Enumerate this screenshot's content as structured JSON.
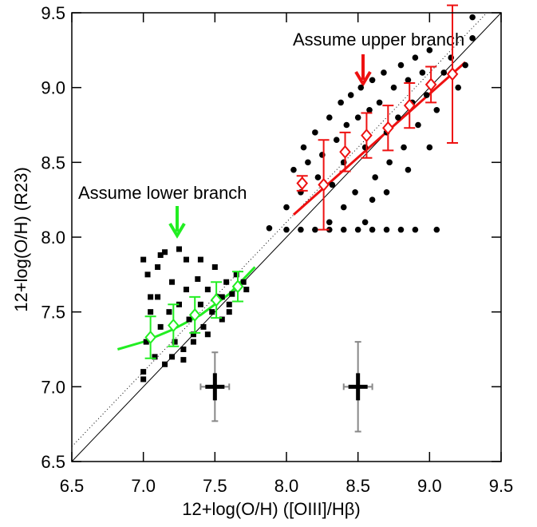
{
  "chart_data": {
    "type": "scatter",
    "xlabel": "12+log(O/H) ([OIII]/Hβ)",
    "ylabel": "12+log(O/H) (R23)",
    "xlim": [
      6.5,
      9.5
    ],
    "ylim": [
      6.5,
      9.5
    ],
    "xticks": [
      {
        "value": 6.5,
        "label": "6.5"
      },
      {
        "value": 7,
        "label": "7.0"
      },
      {
        "value": 7.5,
        "label": "7.5"
      },
      {
        "value": 8,
        "label": "8.0"
      },
      {
        "value": 8.5,
        "label": "8.5"
      },
      {
        "value": 9,
        "label": "9.0"
      },
      {
        "value": 9.5,
        "label": "9.5"
      }
    ],
    "yticks": [
      {
        "value": 6.5,
        "label": "6.5"
      },
      {
        "value": 7,
        "label": "7.0"
      },
      {
        "value": 7.5,
        "label": "7.5"
      },
      {
        "value": 8,
        "label": "8.0"
      },
      {
        "value": 8.5,
        "label": "8.5"
      },
      {
        "value": 9,
        "label": "9.0"
      },
      {
        "value": 9.5,
        "label": "9.5"
      }
    ],
    "annotations": [
      "Assume upper branch",
      "Assume lower branch"
    ],
    "series": [
      {
        "marker": "square",
        "color": "#000000",
        "x": [
          7.0,
          7.02,
          7.05,
          7.03,
          7.08,
          7.1,
          7.12,
          7.0,
          7.15,
          7.18,
          7.2,
          7.22,
          7.1,
          7.25,
          7.28,
          7.3,
          7.15,
          7.32,
          7.35,
          7.38,
          7.4,
          7.25,
          7.42,
          7.45,
          7.48,
          7.5,
          7.35,
          7.52,
          7.55,
          7.58,
          7.6,
          7.45,
          7.62,
          7.65,
          7.7,
          7.72,
          7.2,
          7.3,
          7.05,
          7.4,
          7.55,
          7.12,
          7.28,
          7.6,
          7.0
        ],
        "values": [
          7.1,
          7.3,
          7.5,
          7.75,
          7.2,
          7.6,
          7.4,
          7.85,
          7.15,
          7.5,
          7.7,
          7.3,
          7.8,
          7.55,
          7.25,
          7.65,
          7.9,
          7.45,
          7.35,
          7.72,
          7.55,
          7.92,
          7.4,
          7.65,
          7.5,
          7.8,
          7.3,
          7.6,
          7.45,
          7.7,
          7.55,
          7.35,
          7.62,
          7.75,
          7.7,
          7.65,
          7.2,
          7.85,
          7.6,
          7.85,
          7.6,
          7.88,
          7.18,
          7.5,
          7.05
        ]
      },
      {
        "marker": "circle",
        "color": "#000000",
        "x": [
          8.0,
          8.05,
          8.1,
          8.12,
          8.15,
          8.2,
          8.22,
          8.25,
          8.3,
          8.32,
          8.35,
          8.38,
          8.4,
          8.42,
          8.45,
          8.48,
          8.5,
          8.52,
          8.55,
          8.58,
          8.6,
          8.62,
          8.65,
          8.68,
          8.7,
          8.72,
          8.75,
          8.78,
          8.8,
          8.82,
          8.85,
          8.88,
          8.9,
          8.92,
          8.95,
          8.98,
          9.0,
          9.05,
          9.1,
          9.15,
          9.2,
          9.25,
          9.3,
          9.3,
          8.4,
          8.55,
          8.7,
          8.85,
          9.0,
          7.88,
          8.3,
          8.6,
          8.0,
          8.1,
          8.2,
          8.3,
          8.4,
          8.5,
          8.6,
          8.7,
          8.8,
          8.9,
          9.05
        ],
        "values": [
          8.2,
          8.45,
          8.3,
          8.6,
          8.5,
          8.7,
          8.4,
          8.55,
          8.8,
          8.35,
          8.65,
          8.9,
          8.5,
          8.75,
          8.95,
          8.3,
          8.8,
          9.0,
          8.6,
          8.85,
          9.05,
          8.4,
          8.9,
          9.1,
          8.7,
          8.5,
          9.0,
          8.8,
          9.15,
          8.6,
          9.05,
          8.9,
          9.2,
          8.75,
          9.1,
          8.95,
          9.25,
          8.85,
          9.1,
          9.2,
          9.0,
          9.15,
          9.47,
          9.33,
          8.2,
          8.1,
          8.3,
          8.45,
          8.6,
          8.06,
          8.1,
          8.25,
          8.05,
          8.05,
          8.05,
          8.05,
          8.05,
          8.05,
          8.05,
          8.05,
          8.05,
          8.05,
          8.05
        ]
      },
      {
        "marker": "diamond",
        "color": "#22ee22",
        "x": [
          7.05,
          7.21,
          7.36,
          7.51,
          7.66
        ],
        "values": [
          7.33,
          7.41,
          7.48,
          7.58,
          7.67
        ],
        "errors": [
          0.14,
          0.14,
          0.12,
          0.12,
          0.1
        ]
      },
      {
        "marker": "diamond",
        "color": "#ee1111",
        "x": [
          8.11,
          8.26,
          8.41,
          8.56,
          8.71,
          8.86,
          9.01,
          9.16
        ],
        "values": [
          8.36,
          8.35,
          8.57,
          8.68,
          8.73,
          8.88,
          9.02,
          9.09
        ],
        "errors": [
          0.05,
          0.3,
          0.13,
          0.15,
          0.15,
          0.15,
          0.12,
          0.46
        ]
      },
      {
        "marker": "cross",
        "color": "#888888",
        "x": [
          7.5,
          8.5
        ],
        "values": [
          7.0,
          7.0
        ],
        "xerr": [
          0.1,
          0.1
        ],
        "yerr": [
          0.23,
          0.3
        ]
      }
    ],
    "lines": [
      {
        "color": "#000000",
        "style": "solid",
        "width": 1,
        "x": [
          6.5,
          9.5
        ],
        "y": [
          6.5,
          9.5
        ]
      },
      {
        "color": "#000000",
        "style": "dotted",
        "width": 1,
        "x": [
          6.5,
          9.4
        ],
        "y": [
          6.6,
          9.5
        ]
      },
      {
        "color": "#22ee22",
        "style": "solid",
        "width": 3,
        "x": [
          6.82,
          7.0,
          7.2,
          7.4,
          7.6,
          7.78
        ],
        "y": [
          7.25,
          7.3,
          7.38,
          7.48,
          7.62,
          7.8
        ]
      },
      {
        "color": "#ee1111",
        "style": "solid",
        "width": 3,
        "x": [
          8.05,
          9.25
        ],
        "y": [
          8.15,
          9.17
        ]
      }
    ]
  }
}
